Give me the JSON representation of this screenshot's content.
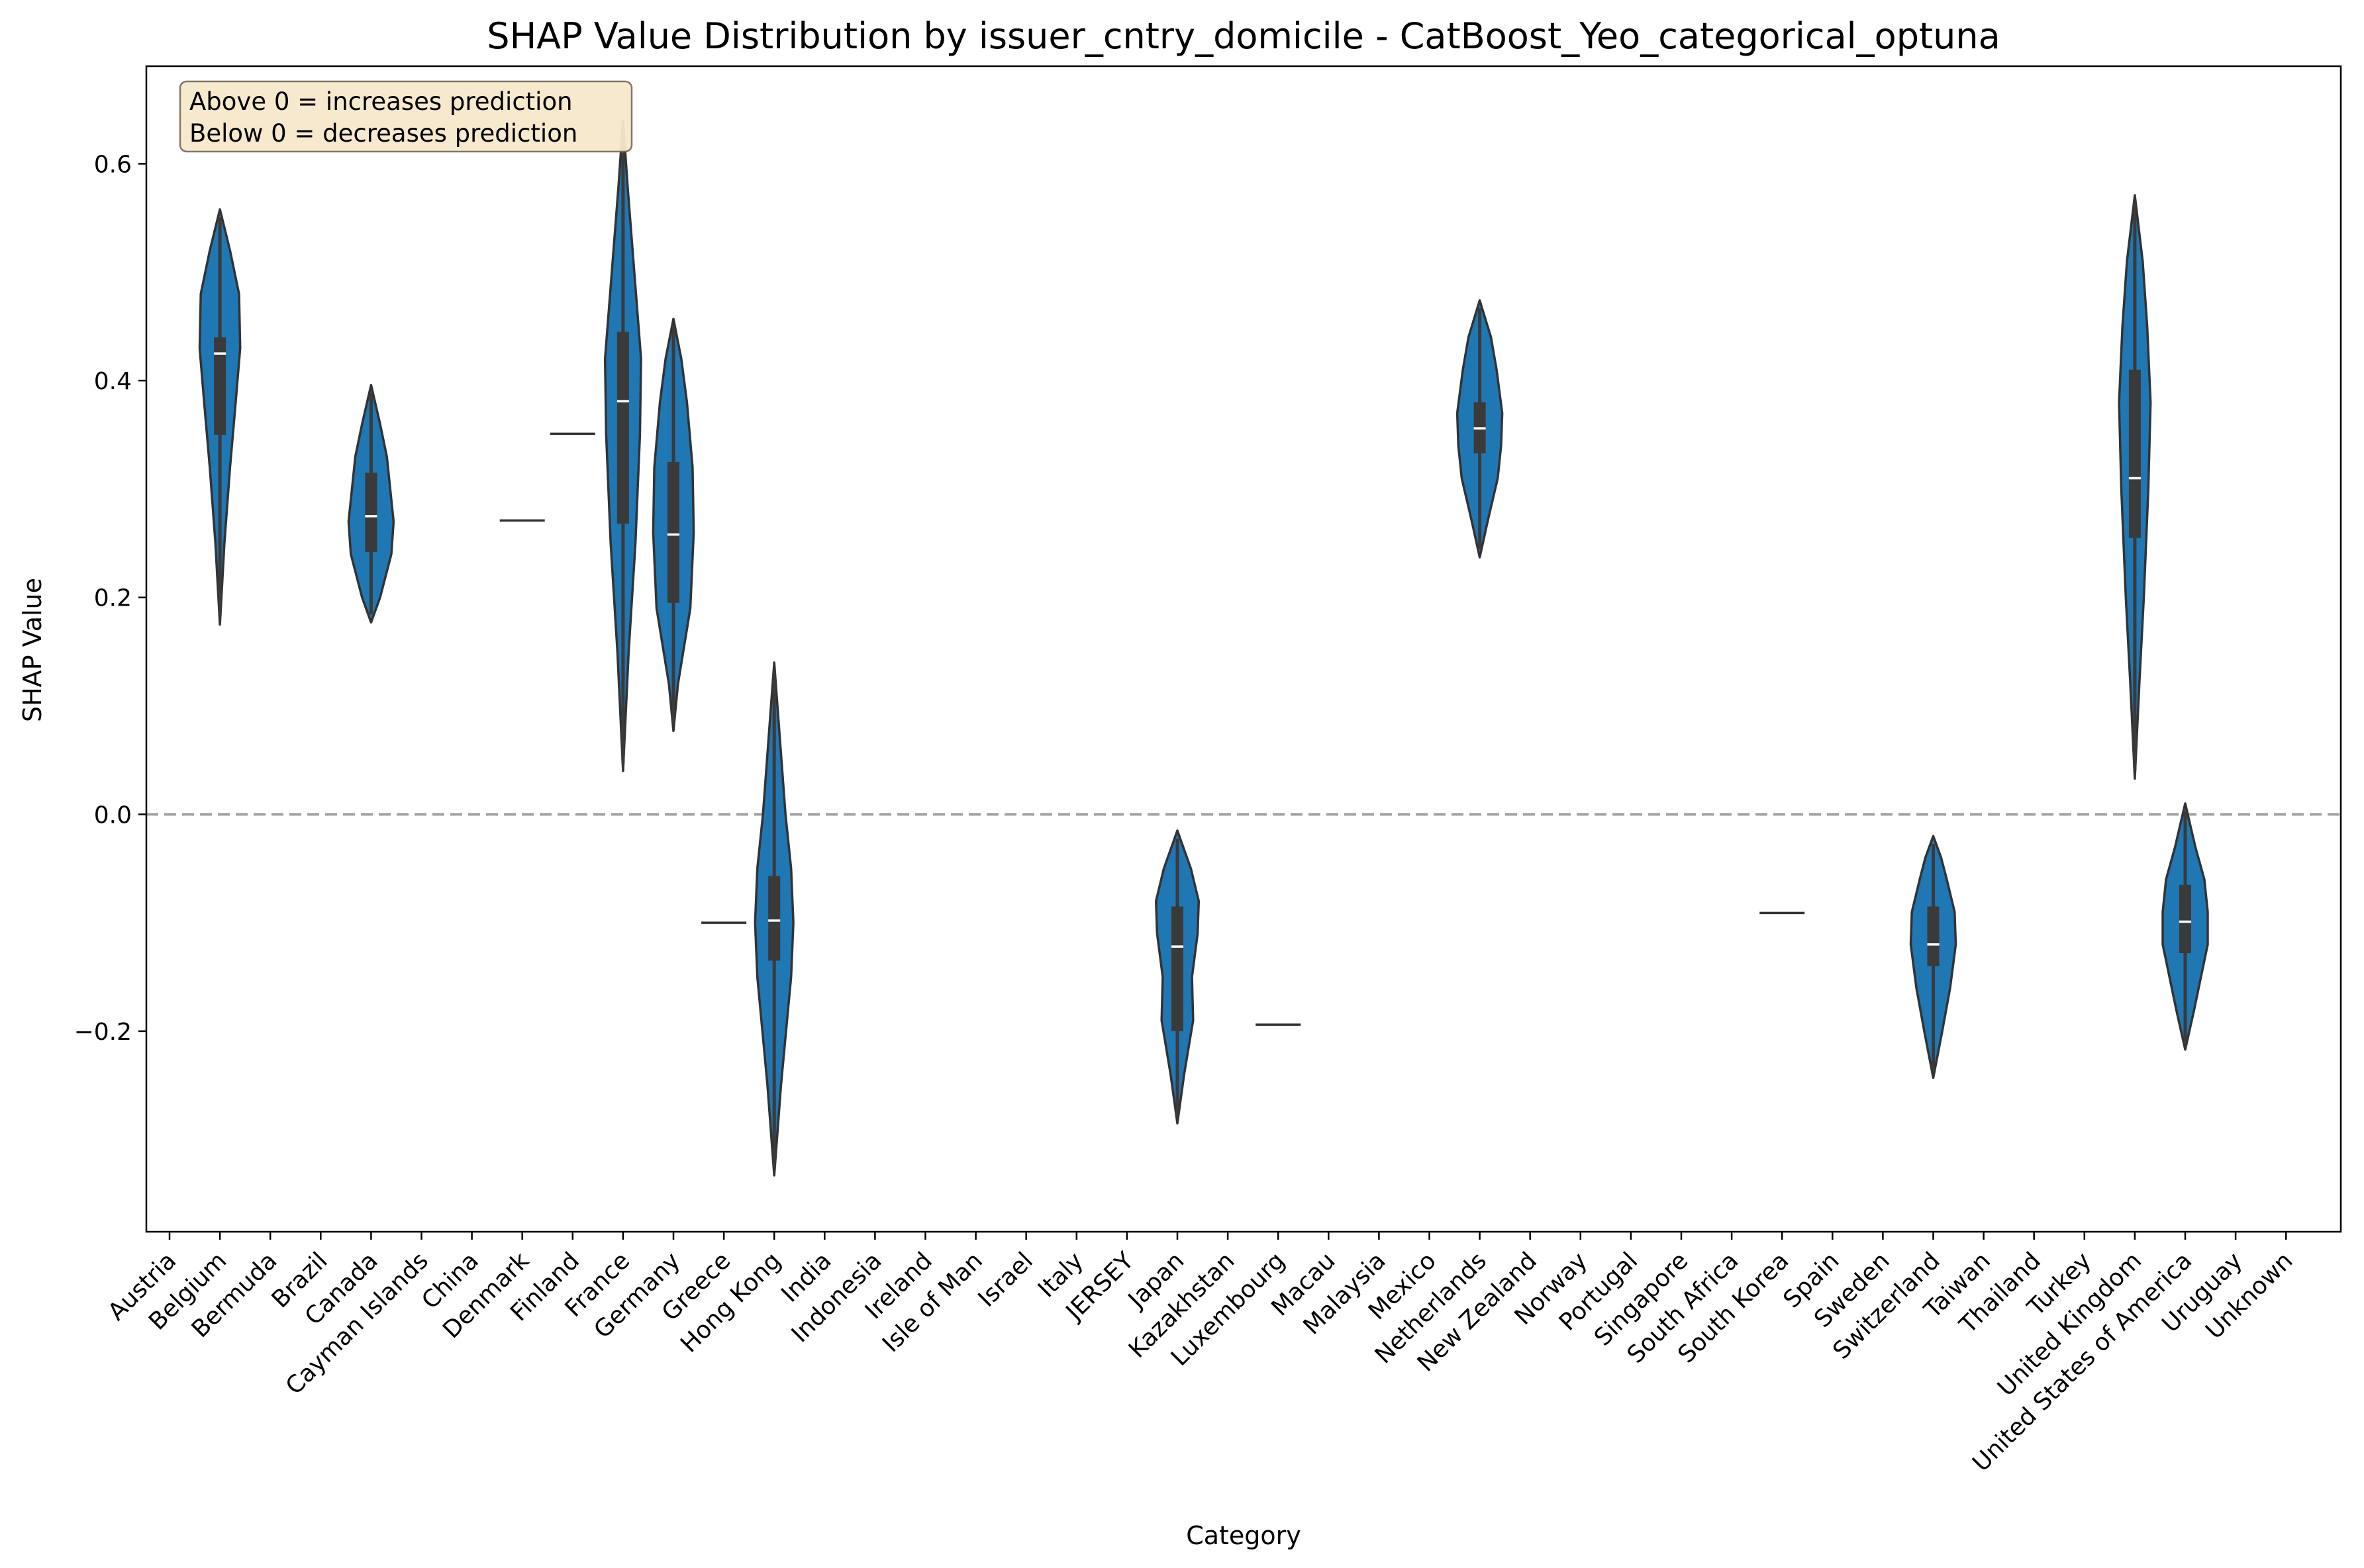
{
  "chart_data": {
    "type": "violin",
    "title": "SHAP Value Distribution by issuer_cntry_domicile - CatBoost_Yeo_categorical_optuna",
    "xlabel": "Category",
    "ylabel": "SHAP Value",
    "ylim": [
      -0.385,
      0.69
    ],
    "yticks": [
      -0.2,
      0.0,
      0.2,
      0.4,
      0.6
    ],
    "ytick_labels": [
      "−0.2",
      "0.0",
      "0.2",
      "0.4",
      "0.6"
    ],
    "reference_line": {
      "y": 0.0,
      "style": "dashed",
      "color": "#a0a0a0"
    },
    "annotation": [
      "Above 0 = increases prediction",
      "Below 0 = decreases prediction"
    ],
    "violin_color": "#1f77b4",
    "categories": [
      "Austria",
      "Belgium",
      "Bermuda",
      "Brazil",
      "Canada",
      "Cayman Islands",
      "China",
      "Denmark",
      "Finland",
      "France",
      "Germany",
      "Greece",
      "Hong Kong",
      "India",
      "Indonesia",
      "Ireland",
      "Isle of Man",
      "Israel",
      "Italy",
      "JERSEY",
      "Japan",
      "Kazakhstan",
      "Luxembourg",
      "Macau",
      "Malaysia",
      "Mexico",
      "Netherlands",
      "New Zealand",
      "Norway",
      "Portugal",
      "Singapore",
      "South Africa",
      "South Korea",
      "Spain",
      "Sweden",
      "Switzerland",
      "Taiwan",
      "Thailand",
      "Turkey",
      "United Kingdom",
      "United States of America",
      "Uruguay",
      "Unknown"
    ],
    "distributions": [
      {
        "category": "Belgium",
        "min": 0.175,
        "q1": 0.35,
        "median": 0.425,
        "q3": 0.44,
        "max": 0.558,
        "profile": [
          [
            0.175,
            0
          ],
          [
            0.25,
            0.2
          ],
          [
            0.32,
            0.45
          ],
          [
            0.38,
            0.7
          ],
          [
            0.43,
            0.9
          ],
          [
            0.48,
            0.85
          ],
          [
            0.52,
            0.45
          ],
          [
            0.558,
            0
          ]
        ]
      },
      {
        "category": "Canada",
        "min": 0.177,
        "q1": 0.242,
        "median": 0.275,
        "q3": 0.315,
        "max": 0.396,
        "profile": [
          [
            0.177,
            0
          ],
          [
            0.2,
            0.4
          ],
          [
            0.24,
            0.9
          ],
          [
            0.27,
            1.0
          ],
          [
            0.3,
            0.85
          ],
          [
            0.33,
            0.7
          ],
          [
            0.36,
            0.4
          ],
          [
            0.396,
            0
          ]
        ]
      },
      {
        "category": "Denmark",
        "single": 0.271
      },
      {
        "category": "Finland",
        "single": 0.351
      },
      {
        "category": "France",
        "min": 0.04,
        "q1": 0.268,
        "median": 0.381,
        "q3": 0.445,
        "max": 0.64,
        "profile": [
          [
            0.04,
            0
          ],
          [
            0.15,
            0.25
          ],
          [
            0.25,
            0.55
          ],
          [
            0.35,
            0.75
          ],
          [
            0.42,
            0.8
          ],
          [
            0.5,
            0.5
          ],
          [
            0.58,
            0.2
          ],
          [
            0.64,
            0
          ]
        ]
      },
      {
        "category": "Germany",
        "min": 0.077,
        "q1": 0.195,
        "median": 0.258,
        "q3": 0.325,
        "max": 0.457,
        "profile": [
          [
            0.077,
            0
          ],
          [
            0.12,
            0.2
          ],
          [
            0.19,
            0.75
          ],
          [
            0.26,
            0.9
          ],
          [
            0.32,
            0.85
          ],
          [
            0.38,
            0.6
          ],
          [
            0.42,
            0.35
          ],
          [
            0.457,
            0
          ]
        ]
      },
      {
        "category": "Greece",
        "single": -0.1
      },
      {
        "category": "Hong Kong",
        "min": -0.333,
        "q1": -0.135,
        "median": -0.098,
        "q3": -0.057,
        "max": 0.14,
        "profile": [
          [
            -0.333,
            0
          ],
          [
            -0.25,
            0.3
          ],
          [
            -0.15,
            0.75
          ],
          [
            -0.1,
            0.85
          ],
          [
            -0.05,
            0.75
          ],
          [
            0.0,
            0.5
          ],
          [
            0.07,
            0.25
          ],
          [
            0.14,
            0
          ]
        ]
      },
      {
        "category": "Japan",
        "min": -0.285,
        "q1": -0.2,
        "median": -0.122,
        "q3": -0.085,
        "max": -0.015,
        "profile": [
          [
            -0.285,
            0
          ],
          [
            -0.24,
            0.3
          ],
          [
            -0.19,
            0.7
          ],
          [
            -0.15,
            0.65
          ],
          [
            -0.11,
            0.9
          ],
          [
            -0.08,
            0.95
          ],
          [
            -0.05,
            0.6
          ],
          [
            -0.015,
            0
          ]
        ]
      },
      {
        "category": "Luxembourg",
        "single": -0.194
      },
      {
        "category": "Netherlands",
        "min": 0.237,
        "q1": 0.333,
        "median": 0.356,
        "q3": 0.38,
        "max": 0.474,
        "profile": [
          [
            0.237,
            0
          ],
          [
            0.27,
            0.35
          ],
          [
            0.31,
            0.8
          ],
          [
            0.34,
            0.95
          ],
          [
            0.37,
            1.0
          ],
          [
            0.41,
            0.75
          ],
          [
            0.44,
            0.5
          ],
          [
            0.474,
            0
          ]
        ]
      },
      {
        "category": "South Korea",
        "single": -0.091
      },
      {
        "category": "Switzerland",
        "min": -0.243,
        "q1": -0.14,
        "median": -0.12,
        "q3": -0.085,
        "max": -0.02,
        "profile": [
          [
            -0.243,
            0
          ],
          [
            -0.2,
            0.4
          ],
          [
            -0.16,
            0.75
          ],
          [
            -0.12,
            1.0
          ],
          [
            -0.09,
            0.95
          ],
          [
            -0.06,
            0.6
          ],
          [
            -0.04,
            0.35
          ],
          [
            -0.02,
            0
          ]
        ]
      },
      {
        "category": "United Kingdom",
        "min": 0.033,
        "q1": 0.255,
        "median": 0.31,
        "q3": 0.41,
        "max": 0.571,
        "profile": [
          [
            0.033,
            0
          ],
          [
            0.12,
            0.2
          ],
          [
            0.2,
            0.4
          ],
          [
            0.3,
            0.6
          ],
          [
            0.38,
            0.7
          ],
          [
            0.45,
            0.55
          ],
          [
            0.51,
            0.35
          ],
          [
            0.571,
            0
          ]
        ]
      },
      {
        "category": "United States of America",
        "min": -0.217,
        "q1": -0.128,
        "median": -0.099,
        "q3": -0.065,
        "max": 0.01,
        "profile": [
          [
            -0.217,
            0
          ],
          [
            -0.18,
            0.4
          ],
          [
            -0.15,
            0.7
          ],
          [
            -0.12,
            1.0
          ],
          [
            -0.09,
            1.0
          ],
          [
            -0.06,
            0.85
          ],
          [
            -0.03,
            0.45
          ],
          [
            0.01,
            0
          ]
        ]
      }
    ]
  }
}
